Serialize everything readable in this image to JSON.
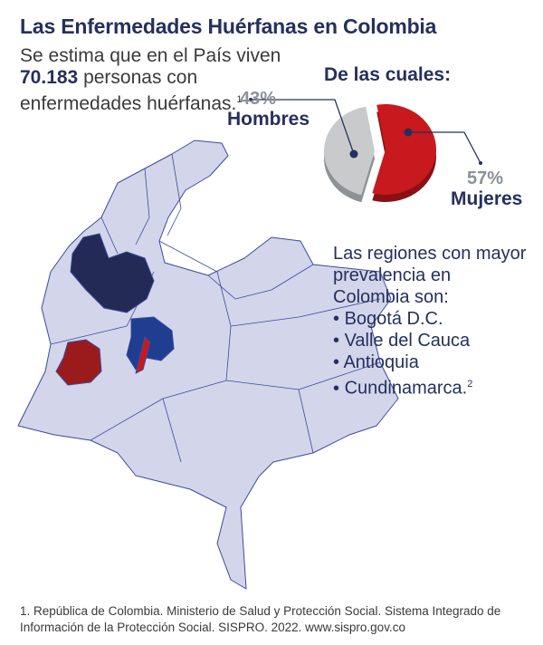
{
  "title": "Las Enfermedades Huérfanas en Colombia",
  "intro": {
    "before": "Se estima que en el País viven ",
    "number": "70.183",
    "after": "  personas con enfermedades huérfanas.",
    "sup": "1"
  },
  "pie": {
    "heading": "De las cuales:",
    "slices": [
      {
        "label": "Hombres",
        "pct_text": "43%",
        "value": 43,
        "color": "#c9cacc",
        "side_color": "#8e9294"
      },
      {
        "label": "Mujeres",
        "pct_text": "57%",
        "value": 57,
        "color": "#c8191e",
        "side_color": "#8a1014"
      }
    ],
    "leader_color": "#25305c"
  },
  "regions": {
    "heading": "Las regiones con mayor prevalencia en Colombia son:",
    "items": [
      "Bogotá D.C.",
      "Valle del Cauca",
      "Antioquia",
      "Cundinamarca."
    ],
    "last_sup": "2"
  },
  "map": {
    "base_color": "#d3d5ea",
    "border_color": "#3d4b9a",
    "antioquia_color": "#222a55",
    "valle_color": "#9b1b1d",
    "cundinamarca_color": "#1f3e8f",
    "bogota_color": "#c8191e"
  },
  "footnote": "1. República de Colombia. Ministerio de Salud y Protección Social. Sistema Integrado de Información de la Protección Social. SISPRO. 2022. www.sispro.gov.co"
}
